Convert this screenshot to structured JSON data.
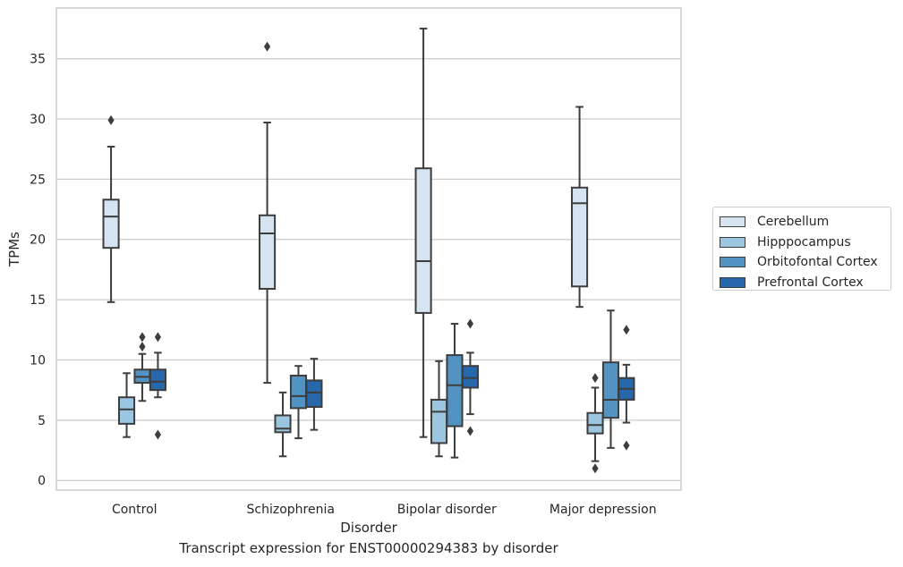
{
  "chart_data": {
    "type": "box",
    "title": "",
    "caption": "Transcript expression for ENST00000294383 by disorder",
    "xlabel": "Disorder",
    "ylabel": "TPMs",
    "ylim": [
      -0.8,
      39.2
    ],
    "yticks": [
      0,
      5,
      10,
      15,
      20,
      25,
      30,
      35
    ],
    "grid": "horizontal",
    "legend_position": "right",
    "categories": [
      "Control",
      "Schizophrenia",
      "Bipolar disorder",
      "Major depression"
    ],
    "series": [
      {
        "name": "Cerebellum",
        "color": "#d6e4f2",
        "boxes": [
          {
            "whislo": 14.8,
            "q1": 19.3,
            "med": 21.9,
            "q3": 23.3,
            "whishi": 27.7,
            "fliers": [
              29.9
            ]
          },
          {
            "whislo": 8.1,
            "q1": 15.9,
            "med": 20.5,
            "q3": 22.0,
            "whishi": 29.7,
            "fliers": [
              36.0
            ]
          },
          {
            "whislo": 3.6,
            "q1": 13.9,
            "med": 18.2,
            "q3": 25.9,
            "whishi": 37.5,
            "fliers": []
          },
          {
            "whislo": 14.4,
            "q1": 16.1,
            "med": 23.0,
            "q3": 24.3,
            "whishi": 31.0,
            "fliers": []
          }
        ]
      },
      {
        "name": "Hipppocampus",
        "color": "#9cc5df",
        "boxes": [
          {
            "whislo": 3.6,
            "q1": 4.7,
            "med": 5.9,
            "q3": 6.9,
            "whishi": 8.9,
            "fliers": []
          },
          {
            "whislo": 2.0,
            "q1": 4.0,
            "med": 4.3,
            "q3": 5.4,
            "whishi": 7.3,
            "fliers": []
          },
          {
            "whislo": 2.0,
            "q1": 3.1,
            "med": 5.7,
            "q3": 6.7,
            "whishi": 9.9,
            "fliers": []
          },
          {
            "whislo": 1.6,
            "q1": 3.9,
            "med": 4.6,
            "q3": 5.6,
            "whishi": 7.7,
            "fliers": [
              8.5,
              1.0
            ]
          }
        ]
      },
      {
        "name": "Orbitofontal Cortex",
        "color": "#5293c3",
        "boxes": [
          {
            "whislo": 6.6,
            "q1": 8.1,
            "med": 8.6,
            "q3": 9.2,
            "whishi": 10.5,
            "fliers": [
              11.1,
              11.9
            ]
          },
          {
            "whislo": 3.5,
            "q1": 6.0,
            "med": 7.0,
            "q3": 8.7,
            "whishi": 9.5,
            "fliers": []
          },
          {
            "whislo": 1.9,
            "q1": 4.5,
            "med": 7.9,
            "q3": 10.4,
            "whishi": 13.0,
            "fliers": []
          },
          {
            "whislo": 2.7,
            "q1": 5.2,
            "med": 6.7,
            "q3": 9.8,
            "whishi": 14.1,
            "fliers": []
          }
        ]
      },
      {
        "name": "Prefrontal Cortex",
        "color": "#2767ac",
        "boxes": [
          {
            "whislo": 6.9,
            "q1": 7.5,
            "med": 8.2,
            "q3": 9.2,
            "whishi": 10.6,
            "fliers": [
              11.9,
              3.8
            ]
          },
          {
            "whislo": 4.2,
            "q1": 6.1,
            "med": 7.3,
            "q3": 8.3,
            "whishi": 10.1,
            "fliers": []
          },
          {
            "whislo": 5.5,
            "q1": 7.7,
            "med": 8.5,
            "q3": 9.5,
            "whishi": 10.6,
            "fliers": [
              13.0,
              4.1
            ]
          },
          {
            "whislo": 4.8,
            "q1": 6.7,
            "med": 7.6,
            "q3": 8.5,
            "whishi": 9.6,
            "fliers": [
              12.5,
              2.9
            ]
          }
        ]
      }
    ]
  }
}
